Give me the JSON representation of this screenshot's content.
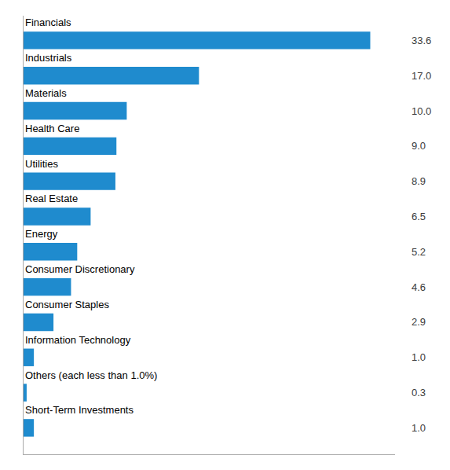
{
  "chart_data": {
    "type": "bar",
    "orientation": "horizontal",
    "categories": [
      "Financials",
      "Industrials",
      "Materials",
      "Health Care",
      "Utilities",
      "Real Estate",
      "Energy",
      "Consumer Discretionary",
      "Consumer Staples",
      "Information Technology",
      "Others (each less than 1.0%)",
      "Short-Term Investments"
    ],
    "values": [
      33.6,
      17.0,
      10.0,
      9.0,
      8.9,
      6.5,
      5.2,
      4.6,
      2.9,
      1.0,
      0.3,
      1.0
    ],
    "value_labels": [
      "33.6",
      "17.0",
      "10.0",
      "9.0",
      "8.9",
      "6.5",
      "5.2",
      "4.6",
      "2.9",
      "1.0",
      "0.3",
      "1.0"
    ],
    "color": "#1f8bce",
    "xlim": [
      0,
      36
    ],
    "data_labels": true,
    "tick_labels": false
  }
}
